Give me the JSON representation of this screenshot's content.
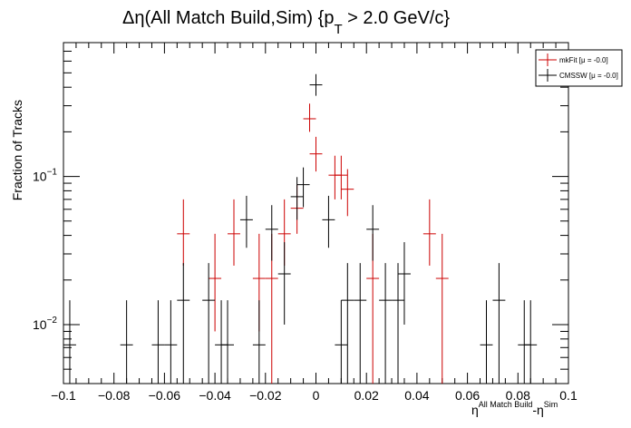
{
  "chart_data": {
    "type": "scatter",
    "title": "Δη(All Match Build,Sim) {p_T > 2.0 GeV/c}",
    "title_parts": {
      "main": "Δη(All Match Build,Sim) {p",
      "sub": "T",
      "tail": " > 2.0 GeV/c}"
    },
    "xlabel": {
      "base": "η",
      "sup1": "All Match Build",
      "mid": "-η",
      "sup2": "Sim"
    },
    "ylabel": "Fraction of Tracks",
    "xlim": [
      -0.1,
      0.1
    ],
    "ylim": [
      0.004,
      0.8
    ],
    "yscale": "log",
    "grid": false,
    "legend_position": "top-right",
    "x_ticks": [
      "−0.1",
      "−0.08",
      "−0.06",
      "−0.04",
      "−0.02",
      "0",
      "0.02",
      "0.04",
      "0.06",
      "0.08",
      "0.1"
    ],
    "x_tick_values": [
      -0.1,
      -0.08,
      -0.06,
      -0.04,
      -0.02,
      0,
      0.02,
      0.04,
      0.06,
      0.08,
      0.1
    ],
    "y_tick_labels": [
      {
        "base": "10",
        "exp": "−1",
        "value": 0.1
      },
      {
        "base": "10",
        "exp": "−2",
        "value": 0.01
      }
    ],
    "bin_halfwidth": 0.0025,
    "series": [
      {
        "name": "mkFit  [μ = -0.0]",
        "color": "#cc0000",
        "points": [
          {
            "x": -0.0525,
            "y": 0.041,
            "lo": 0.025,
            "hi": 0.07
          },
          {
            "x": -0.04,
            "y": 0.0205,
            "lo": 0.009,
            "hi": 0.041
          },
          {
            "x": -0.0325,
            "y": 0.041,
            "lo": 0.025,
            "hi": 0.07
          },
          {
            "x": -0.0225,
            "y": 0.0205,
            "lo": 0.009,
            "hi": 0.041
          },
          {
            "x": -0.0175,
            "y": 0.0205,
            "lo": 0.004,
            "hi": 0.041
          },
          {
            "x": -0.0125,
            "y": 0.041,
            "lo": 0.025,
            "hi": 0.07
          },
          {
            "x": -0.0075,
            "y": 0.061,
            "lo": 0.041,
            "hi": 0.088
          },
          {
            "x": -0.0025,
            "y": 0.245,
            "lo": 0.2,
            "hi": 0.31
          },
          {
            "x": 0.0,
            "y": 0.142,
            "lo": 0.108,
            "hi": 0.185
          },
          {
            "x": 0.0075,
            "y": 0.102,
            "lo": 0.07,
            "hi": 0.138
          },
          {
            "x": 0.01,
            "y": 0.102,
            "lo": 0.07,
            "hi": 0.138
          },
          {
            "x": 0.0125,
            "y": 0.082,
            "lo": 0.054,
            "hi": 0.112
          },
          {
            "x": 0.0225,
            "y": 0.0205,
            "lo": 0.004,
            "hi": 0.041
          },
          {
            "x": 0.045,
            "y": 0.041,
            "lo": 0.025,
            "hi": 0.07
          },
          {
            "x": 0.05,
            "y": 0.0205,
            "lo": 0.004,
            "hi": 0.041
          }
        ]
      },
      {
        "name": "CMSSW  [μ = -0.0]",
        "color": "#000000",
        "points": [
          {
            "x": -0.0975,
            "y": 0.0073,
            "lo": 0.004,
            "hi": 0.0146
          },
          {
            "x": -0.075,
            "y": 0.0073,
            "lo": 0.004,
            "hi": 0.0146
          },
          {
            "x": -0.0625,
            "y": 0.0073,
            "lo": 0.004,
            "hi": 0.0146
          },
          {
            "x": -0.0575,
            "y": 0.0073,
            "lo": 0.004,
            "hi": 0.0146
          },
          {
            "x": -0.0525,
            "y": 0.0146,
            "lo": 0.004,
            "hi": 0.026
          },
          {
            "x": -0.0425,
            "y": 0.0146,
            "lo": 0.004,
            "hi": 0.026
          },
          {
            "x": -0.0375,
            "y": 0.0073,
            "lo": 0.004,
            "hi": 0.0146
          },
          {
            "x": -0.035,
            "y": 0.0073,
            "lo": 0.004,
            "hi": 0.0146
          },
          {
            "x": -0.0275,
            "y": 0.051,
            "lo": 0.033,
            "hi": 0.074
          },
          {
            "x": -0.0225,
            "y": 0.0073,
            "lo": 0.004,
            "hi": 0.0146
          },
          {
            "x": -0.0175,
            "y": 0.044,
            "lo": 0.027,
            "hi": 0.064
          },
          {
            "x": -0.0125,
            "y": 0.022,
            "lo": 0.01,
            "hi": 0.036
          },
          {
            "x": -0.0075,
            "y": 0.073,
            "lo": 0.051,
            "hi": 0.099
          },
          {
            "x": -0.005,
            "y": 0.088,
            "lo": 0.062,
            "hi": 0.115
          },
          {
            "x": 0.0,
            "y": 0.415,
            "lo": 0.35,
            "hi": 0.49
          },
          {
            "x": 0.005,
            "y": 0.051,
            "lo": 0.033,
            "hi": 0.074
          },
          {
            "x": 0.01,
            "y": 0.0073,
            "lo": 0.004,
            "hi": 0.0146
          },
          {
            "x": 0.0125,
            "y": 0.0146,
            "lo": 0.004,
            "hi": 0.026
          },
          {
            "x": 0.0175,
            "y": 0.0146,
            "lo": 0.004,
            "hi": 0.026
          },
          {
            "x": 0.0225,
            "y": 0.044,
            "lo": 0.027,
            "hi": 0.064
          },
          {
            "x": 0.0275,
            "y": 0.0146,
            "lo": 0.004,
            "hi": 0.026
          },
          {
            "x": 0.0325,
            "y": 0.0146,
            "lo": 0.004,
            "hi": 0.026
          },
          {
            "x": 0.035,
            "y": 0.022,
            "lo": 0.01,
            "hi": 0.036
          },
          {
            "x": 0.0675,
            "y": 0.0073,
            "lo": 0.004,
            "hi": 0.0146
          },
          {
            "x": 0.0725,
            "y": 0.0146,
            "lo": 0.004,
            "hi": 0.026
          },
          {
            "x": 0.0825,
            "y": 0.0073,
            "lo": 0.004,
            "hi": 0.0146
          },
          {
            "x": 0.085,
            "y": 0.0073,
            "lo": 0.004,
            "hi": 0.0146
          }
        ]
      }
    ]
  }
}
